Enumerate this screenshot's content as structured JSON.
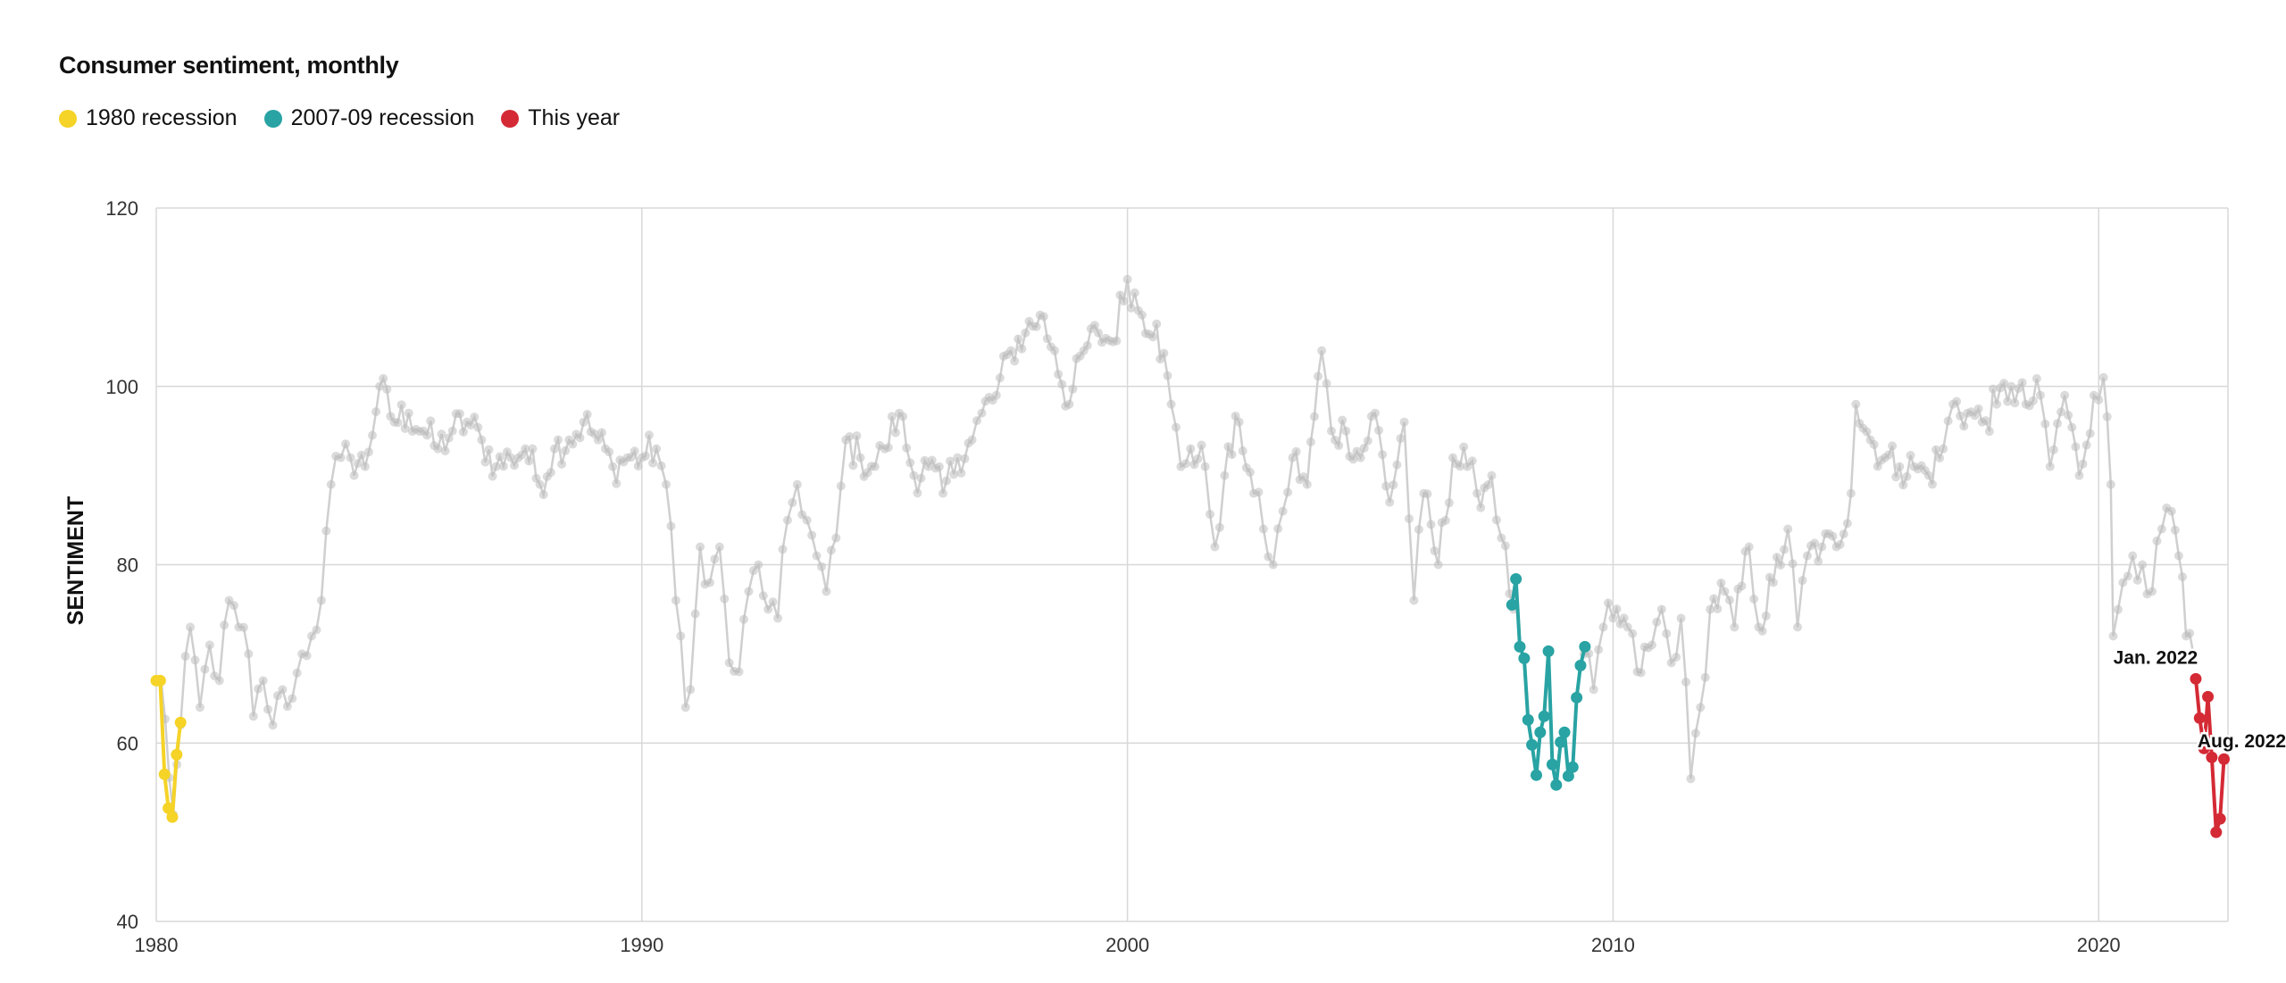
{
  "chart_data": {
    "type": "line",
    "title": "Consumer sentiment, monthly",
    "xlabel": "",
    "ylabel": "SENTIMENT",
    "xlim": [
      1980,
      2022.7
    ],
    "ylim": [
      40,
      120
    ],
    "x_ticks": [
      1980,
      1990,
      2000,
      2010,
      2020
    ],
    "y_ticks": [
      40,
      60,
      80,
      100,
      120
    ],
    "grid": true,
    "legend": "top-left",
    "colors": {
      "background_series": "#cfcfcf",
      "background_marker": "#bdbdbd",
      "recession_1980": "#f5d327",
      "recession_2008": "#29a3a3",
      "this_year": "#d42a35",
      "grid": "#d8d8d8"
    },
    "background_series_anchors": [
      [
        1980.0,
        67
      ],
      [
        1980.1,
        67
      ],
      [
        1980.35,
        52
      ],
      [
        1980.5,
        62
      ],
      [
        1980.7,
        73
      ],
      [
        1980.9,
        64
      ],
      [
        1981.1,
        71
      ],
      [
        1981.3,
        67
      ],
      [
        1981.5,
        76
      ],
      [
        1981.7,
        73
      ],
      [
        1981.9,
        70
      ],
      [
        1982.0,
        63
      ],
      [
        1982.2,
        67
      ],
      [
        1982.4,
        62
      ],
      [
        1982.6,
        66
      ],
      [
        1982.8,
        65
      ],
      [
        1983.0,
        70
      ],
      [
        1983.2,
        72
      ],
      [
        1983.4,
        76
      ],
      [
        1983.6,
        89
      ],
      [
        1983.8,
        92
      ],
      [
        1984.0,
        92
      ],
      [
        1984.3,
        91
      ],
      [
        1984.6,
        100
      ],
      [
        1984.9,
        96
      ],
      [
        1985.2,
        97
      ],
      [
        1985.5,
        95
      ],
      [
        1985.8,
        93
      ],
      [
        1986.1,
        95
      ],
      [
        1986.4,
        96
      ],
      [
        1986.7,
        94
      ],
      [
        1987.0,
        91
      ],
      [
        1987.3,
        92
      ],
      [
        1987.6,
        93
      ],
      [
        1987.9,
        89
      ],
      [
        1988.2,
        93
      ],
      [
        1988.5,
        94
      ],
      [
        1988.8,
        96
      ],
      [
        1989.1,
        94
      ],
      [
        1989.4,
        91
      ],
      [
        1989.7,
        92
      ],
      [
        1990.0,
        92
      ],
      [
        1990.3,
        93
      ],
      [
        1990.5,
        89
      ],
      [
        1990.7,
        76
      ],
      [
        1990.8,
        72
      ],
      [
        1990.9,
        64
      ],
      [
        1991.0,
        66
      ],
      [
        1991.2,
        82
      ],
      [
        1991.4,
        78
      ],
      [
        1991.6,
        82
      ],
      [
        1991.8,
        69
      ],
      [
        1992.0,
        68
      ],
      [
        1992.2,
        77
      ],
      [
        1992.4,
        80
      ],
      [
        1992.6,
        75
      ],
      [
        1992.8,
        74
      ],
      [
        1993.0,
        85
      ],
      [
        1993.2,
        89
      ],
      [
        1993.4,
        85
      ],
      [
        1993.6,
        81
      ],
      [
        1993.8,
        77
      ],
      [
        1994.0,
        83
      ],
      [
        1994.2,
        94
      ],
      [
        1994.5,
        92
      ],
      [
        1994.8,
        91
      ],
      [
        1995.0,
        93
      ],
      [
        1995.3,
        97
      ],
      [
        1995.6,
        90
      ],
      [
        1995.9,
        91
      ],
      [
        1996.2,
        88
      ],
      [
        1996.5,
        92
      ],
      [
        1996.8,
        94
      ],
      [
        1997.0,
        97
      ],
      [
        1997.3,
        99
      ],
      [
        1997.6,
        104
      ],
      [
        1997.9,
        106
      ],
      [
        1998.2,
        108
      ],
      [
        1998.5,
        104
      ],
      [
        1998.8,
        98
      ],
      [
        1999.1,
        104
      ],
      [
        1999.4,
        106
      ],
      [
        1999.7,
        105
      ],
      [
        2000.0,
        112
      ],
      [
        2000.3,
        108
      ],
      [
        2000.6,
        107
      ],
      [
        2000.9,
        98
      ],
      [
        2001.1,
        91
      ],
      [
        2001.3,
        93
      ],
      [
        2001.6,
        91
      ],
      [
        2001.8,
        82
      ],
      [
        2002.0,
        90
      ],
      [
        2002.3,
        96
      ],
      [
        2002.6,
        88
      ],
      [
        2002.8,
        84
      ],
      [
        2003.0,
        80
      ],
      [
        2003.2,
        86
      ],
      [
        2003.4,
        92
      ],
      [
        2003.7,
        89
      ],
      [
        2004.0,
        104
      ],
      [
        2004.2,
        95
      ],
      [
        2004.5,
        95
      ],
      [
        2004.8,
        92
      ],
      [
        2005.1,
        97
      ],
      [
        2005.4,
        87
      ],
      [
        2005.7,
        96
      ],
      [
        2005.9,
        76
      ],
      [
        2006.1,
        88
      ],
      [
        2006.4,
        80
      ],
      [
        2006.7,
        92
      ],
      [
        2007.0,
        91
      ],
      [
        2007.2,
        88
      ],
      [
        2007.5,
        90
      ],
      [
        2007.7,
        83
      ],
      [
        2007.95,
        75
      ]
    ],
    "background_series_anchors_2": [
      [
        2009.4,
        70
      ],
      [
        2009.6,
        66
      ],
      [
        2009.8,
        73
      ],
      [
        2010.0,
        74
      ],
      [
        2010.3,
        73
      ],
      [
        2010.5,
        68
      ],
      [
        2010.8,
        71
      ],
      [
        2011.0,
        75
      ],
      [
        2011.2,
        69
      ],
      [
        2011.4,
        74
      ],
      [
        2011.6,
        56
      ],
      [
        2011.8,
        64
      ],
      [
        2012.0,
        75
      ],
      [
        2012.3,
        77
      ],
      [
        2012.5,
        73
      ],
      [
        2012.8,
        82
      ],
      [
        2013.0,
        73
      ],
      [
        2013.3,
        78
      ],
      [
        2013.6,
        84
      ],
      [
        2013.8,
        73
      ],
      [
        2014.0,
        81
      ],
      [
        2014.3,
        82
      ],
      [
        2014.6,
        82
      ],
      [
        2014.9,
        88
      ],
      [
        2015.0,
        98
      ],
      [
        2015.3,
        94
      ],
      [
        2015.6,
        92
      ],
      [
        2015.9,
        91
      ],
      [
        2016.2,
        91
      ],
      [
        2016.5,
        90
      ],
      [
        2016.8,
        93
      ],
      [
        2017.0,
        98
      ],
      [
        2017.3,
        97
      ],
      [
        2017.6,
        96
      ],
      [
        2017.9,
        98
      ],
      [
        2018.2,
        100
      ],
      [
        2018.5,
        98
      ],
      [
        2018.8,
        99
      ],
      [
        2019.0,
        91
      ],
      [
        2019.3,
        99
      ],
      [
        2019.6,
        90
      ],
      [
        2019.9,
        99
      ],
      [
        2020.1,
        101
      ],
      [
        2020.25,
        89
      ],
      [
        2020.3,
        72
      ],
      [
        2020.5,
        78
      ],
      [
        2020.7,
        81
      ],
      [
        2020.9,
        80
      ],
      [
        2021.1,
        77
      ],
      [
        2021.3,
        84
      ],
      [
        2021.5,
        86
      ],
      [
        2021.65,
        81
      ],
      [
        2021.8,
        72
      ],
      [
        2021.95,
        70
      ]
    ],
    "series": [
      {
        "name": "1980 recession",
        "color": "#f5d327",
        "x": [
          1980.0,
          1980.08,
          1980.17,
          1980.25,
          1980.33,
          1980.42,
          1980.5
        ],
        "y": [
          67,
          67,
          56.5,
          52.7,
          51.7,
          58.7,
          62.3
        ]
      },
      {
        "name": "2007-09 recession",
        "color": "#29a3a3",
        "x": [
          2007.92,
          2008.0,
          2008.08,
          2008.17,
          2008.25,
          2008.33,
          2008.42,
          2008.5,
          2008.58,
          2008.67,
          2008.75,
          2008.83,
          2008.92,
          2009.0,
          2009.08,
          2009.17,
          2009.25,
          2009.33,
          2009.42
        ],
        "y": [
          75.5,
          78.4,
          70.8,
          69.5,
          62.6,
          59.8,
          56.4,
          61.2,
          63.0,
          70.3,
          57.6,
          55.3,
          60.1,
          61.2,
          56.3,
          57.3,
          65.1,
          68.7,
          70.8
        ]
      },
      {
        "name": "This year",
        "color": "#d42a35",
        "x": [
          2022.0,
          2022.08,
          2022.17,
          2022.25,
          2022.33,
          2022.42,
          2022.5,
          2022.58
        ],
        "y": [
          67.2,
          62.8,
          59.4,
          65.2,
          58.4,
          50.0,
          51.5,
          58.2
        ]
      }
    ],
    "annotations": [
      {
        "text": "Jan. 2022",
        "x": 2022.0,
        "y": 67.2
      },
      {
        "text": "Aug. 2022",
        "x": 2022.58,
        "y": 58.2
      }
    ]
  }
}
